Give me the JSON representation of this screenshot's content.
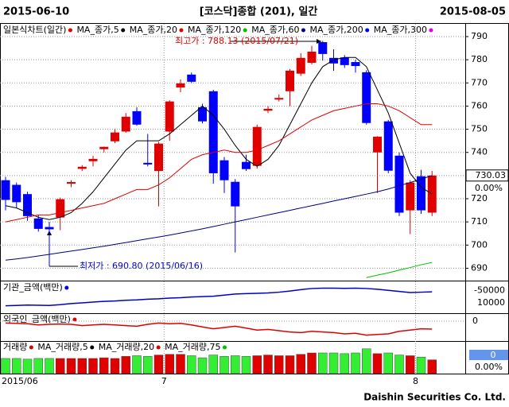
{
  "chart_data": {
    "type": "candlestick",
    "start_date": "2015-06-10",
    "title": "[코스닥]종합 (201), 일간",
    "end_date": "2015-08-05",
    "series_label": "일본식차트(일간)",
    "series_label_color": "#e00000",
    "up_color": "#e00000",
    "down_color": "#0000ff",
    "open": [
      728,
      726,
      722,
      711.5,
      707.8,
      711.9,
      726.5,
      732.9,
      736.2,
      741.4,
      744.8,
      749,
      757.8,
      735.5,
      732,
      749,
      768,
      773.6,
      759.5,
      766.4,
      736.6,
      727.3,
      735.9,
      734.2,
      758,
      762.8,
      766.4,
      774,
      778.7,
      787.6,
      780.8,
      781,
      779,
      774.6,
      740,
      753.4,
      738.6,
      715,
      729.7,
      714
    ],
    "high": [
      729.5,
      727,
      723,
      713,
      710,
      720.5,
      728,
      734.5,
      738.5,
      742.5,
      750,
      757,
      759.5,
      748,
      744.5,
      762.5,
      771.5,
      774.5,
      761,
      767,
      738,
      728.5,
      739,
      752,
      760,
      765,
      776,
      782.8,
      786,
      788.13,
      784.5,
      782,
      780,
      775.5,
      747,
      754,
      740,
      728,
      732.5,
      732
    ],
    "low": [
      715,
      716,
      710.5,
      705.8,
      690.8,
      706.4,
      725,
      732,
      734,
      740,
      744,
      748.5,
      751.5,
      734,
      716.7,
      745,
      766,
      770,
      752.5,
      726.5,
      722.5,
      696.8,
      732,
      733,
      757,
      762,
      760,
      773,
      778,
      779.6,
      775.2,
      776.5,
      774.5,
      752,
      722.5,
      731,
      712.5,
      704.7,
      713.5,
      712.5
    ],
    "close": [
      719.5,
      718.5,
      712.5,
      707,
      706.8,
      719.8,
      727.2,
      733.8,
      737.2,
      742.4,
      748.6,
      755.4,
      752,
      734.8,
      743.8,
      762,
      769.8,
      770.5,
      753.4,
      731,
      728,
      716.7,
      732.8,
      751,
      758.8,
      763.5,
      775.3,
      780.8,
      783.5,
      782.5,
      778.4,
      777.7,
      777.3,
      752.7,
      746.8,
      732.1,
      714,
      727,
      715,
      730.03
    ],
    "series": [
      {
        "name": "MA_종가,5",
        "color": "#000000",
        "values": [
          717,
          716,
          714,
          712,
          711,
          712,
          714,
          718,
          723,
          729,
          735,
          741,
          745,
          745,
          745,
          748,
          752,
          756,
          760,
          756,
          750,
          743,
          737,
          734,
          737,
          743,
          752,
          761,
          770,
          777,
          780,
          781,
          781,
          777,
          767,
          757,
          744,
          731,
          725,
          722
        ]
      },
      {
        "name": "MA_종가,20",
        "color": "#e00000",
        "values": [
          710,
          711,
          712,
          713,
          713,
          714,
          715,
          716,
          717,
          718,
          720,
          722,
          724,
          724,
          726,
          729,
          733,
          737,
          739,
          740,
          741,
          740,
          740,
          741,
          743,
          745,
          748,
          751,
          754,
          756,
          758,
          759,
          760,
          761,
          761,
          760,
          758,
          755,
          752,
          752
        ]
      },
      {
        "name": "MA_종가,120",
        "color": "#00c000",
        "values": [
          null,
          null,
          null,
          null,
          null,
          null,
          null,
          null,
          null,
          null,
          null,
          null,
          null,
          null,
          null,
          null,
          null,
          null,
          null,
          null,
          null,
          null,
          null,
          null,
          null,
          null,
          null,
          null,
          null,
          null,
          null,
          null,
          null,
          686,
          687,
          688,
          689.2,
          690.3,
          691.5,
          692.5
        ]
      },
      {
        "name": "MA_종가,60",
        "color": "#000080",
        "values": [
          693.5,
          694,
          694.6,
          695.3,
          696,
          696.7,
          697.4,
          698.1,
          698.8,
          699.5,
          700.3,
          701.1,
          701.9,
          702.7,
          703.5,
          704.3,
          705.2,
          706.1,
          707,
          708,
          709,
          710,
          711,
          712,
          713,
          714,
          715,
          716,
          717,
          718,
          719,
          720,
          721,
          722,
          723,
          724.2,
          725.6,
          727,
          728.5,
          730
        ]
      },
      {
        "name": "MA_종가,200",
        "color": "#0000ff"
      },
      {
        "name": "MA_종가,300",
        "color": "#e000e0"
      }
    ],
    "ylim": [
      685,
      795.5
    ],
    "yticks": [
      690,
      700,
      710,
      720,
      730,
      740,
      750,
      760,
      770,
      780,
      790
    ],
    "change_label": "0.00%",
    "annotations": [
      "최고가 : 788.13 (2015/07/21)",
      "최저가 : 690.80 (2015/06/16)"
    ],
    "xticks": [
      {
        "value": 0,
        "label": "2015/06"
      },
      {
        "value": 15,
        "label": "7"
      },
      {
        "value": 38,
        "label": "8"
      }
    ],
    "institution": {
      "name": "기관_금액(백만)",
      "color": "#0000cc",
      "ylim": [
        -110000,
        -30000
      ],
      "yticks": [
        -50000
      ],
      "unit_label": "10000",
      "values": [
        -92000,
        -91000,
        -90000,
        -90500,
        -91000,
        -89000,
        -86000,
        -84000,
        -82000,
        -80000,
        -79000,
        -77000,
        -76000,
        -74000,
        -73000,
        -71000,
        -70000,
        -68000,
        -67000,
        -66000,
        -63000,
        -60000,
        -59000,
        -58000,
        -57000,
        -55000,
        -52000,
        -48000,
        -45000,
        -44000,
        -44000,
        -44500,
        -44000,
        -45000,
        -47000,
        -50000,
        -53000,
        -56000,
        -55000,
        -54000
      ]
    },
    "foreign": {
      "name": "외국인_금액(백만)",
      "color": "#e00000",
      "ylim": [
        -30000,
        10000
      ],
      "yticks": [
        0
      ],
      "values": [
        -3000,
        -3500,
        -4000,
        -6000,
        -5000,
        -4500,
        -5000,
        -7000,
        -6000,
        -5000,
        -6000,
        -7000,
        -8000,
        -5000,
        -3000,
        -4000,
        -3500,
        -6000,
        -9000,
        -12000,
        -10000,
        -8000,
        -11000,
        -14000,
        -13000,
        -15000,
        -17000,
        -18000,
        -16000,
        -17000,
        -18000,
        -20000,
        -19000,
        -22000,
        -21000,
        -20000,
        -16000,
        -14000,
        -12000,
        -12500
      ]
    },
    "volume": {
      "name": "거래량",
      "color": "#e00000",
      "ylim": [
        0,
        45
      ],
      "last_label": "0",
      "change_label": "0.00%",
      "ma_legend": [
        {
          "name": "MA_거래량,5",
          "color": "#000000"
        },
        {
          "name": "MA_거래량,20",
          "color": "#e00000"
        },
        {
          "name": "MA_거래량,75",
          "color": "#00c000"
        }
      ],
      "values": [
        22,
        22,
        21,
        22,
        22,
        22,
        22,
        22,
        22,
        23,
        22,
        25,
        26,
        25,
        27,
        28,
        28,
        26,
        23,
        27,
        25,
        26,
        25,
        26,
        27,
        26,
        26,
        28,
        30,
        30,
        30,
        29,
        30,
        36,
        29,
        30,
        27,
        26,
        24,
        20
      ]
    },
    "footer": "Daishin Securities Co. Ltd."
  }
}
